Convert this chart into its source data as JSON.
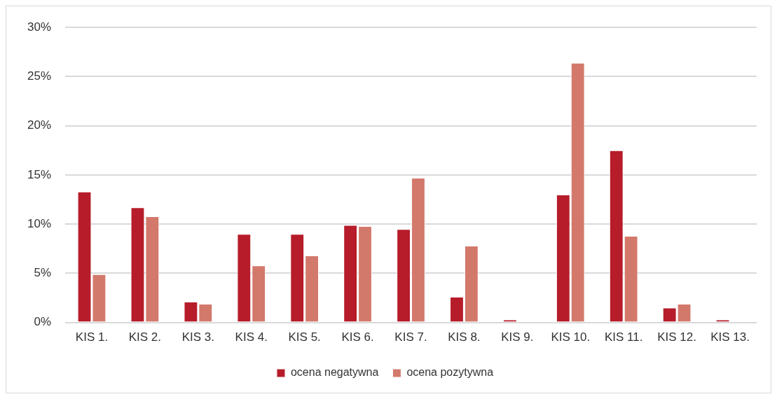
{
  "chart_data": {
    "type": "bar",
    "categories": [
      "KIS 1.",
      "KIS 2.",
      "KIS 3.",
      "KIS 4.",
      "KIS 5.",
      "KIS 6.",
      "KIS 7.",
      "KIS 8.",
      "KIS 9.",
      "KIS 10.",
      "KIS 11.",
      "KIS 12.",
      "KIS 13."
    ],
    "series": [
      {
        "name": "ocena negatywna",
        "color": "#b71c2a",
        "values": [
          13.3,
          11.7,
          2.1,
          9.0,
          9.0,
          9.9,
          9.5,
          2.6,
          0.3,
          13.0,
          17.5,
          1.5,
          0.3
        ]
      },
      {
        "name": "ocena pozytywna",
        "color": "#d3796c",
        "values": [
          4.9,
          10.8,
          1.9,
          5.8,
          6.8,
          9.8,
          14.7,
          7.8,
          0,
          26.4,
          8.8,
          1.9,
          0
        ]
      }
    ],
    "ylim": [
      0,
      30
    ],
    "yticks": [
      {
        "value": 0,
        "label": "0%"
      },
      {
        "value": 5,
        "label": "5%"
      },
      {
        "value": 10,
        "label": "10%"
      },
      {
        "value": 15,
        "label": "15%"
      },
      {
        "value": 20,
        "label": "20%"
      },
      {
        "value": 25,
        "label": "25%"
      },
      {
        "value": 30,
        "label": "30%"
      }
    ],
    "grid": "y",
    "legend": "bottom"
  }
}
